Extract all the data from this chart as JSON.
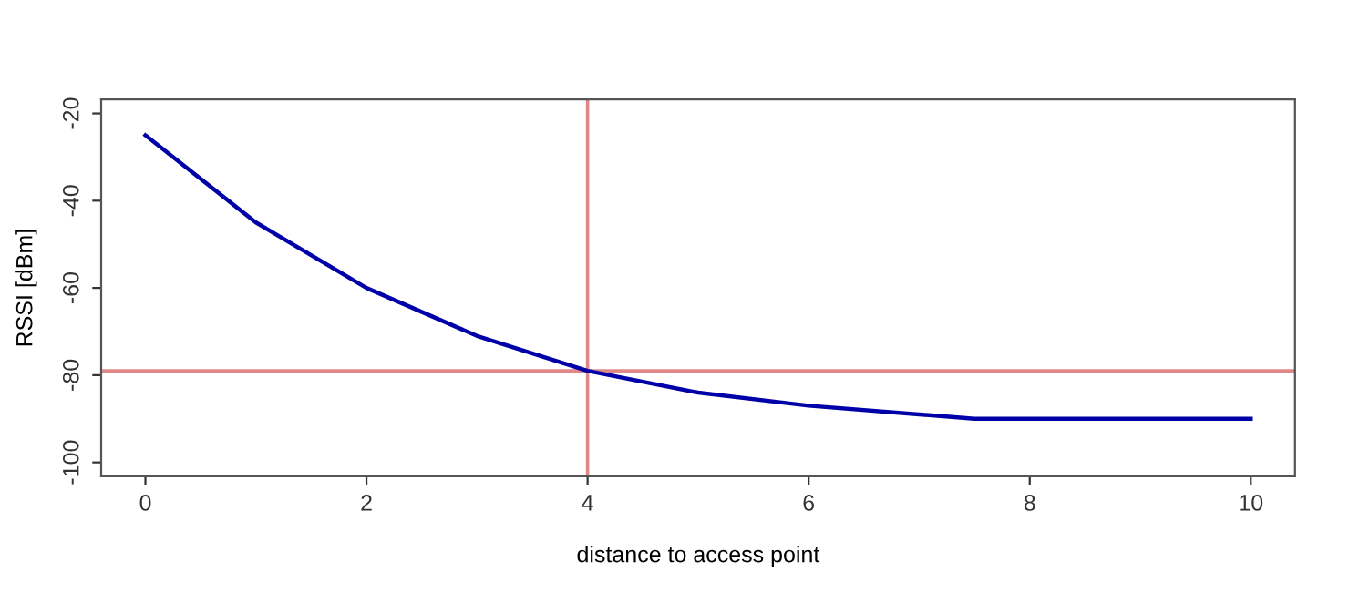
{
  "chart_data": {
    "type": "line",
    "xlabel": "distance to access point",
    "ylabel": "RSSI [dBm]",
    "x": [
      0,
      1,
      2,
      3,
      4,
      5,
      6,
      7,
      7.5,
      10
    ],
    "series": [
      {
        "color": "#0000a8",
        "values": [
          -25,
          -45,
          -60,
          -71,
          -79,
          -84,
          -87,
          -89,
          -90,
          -90
        ]
      }
    ],
    "xlim": [
      -0.4,
      10.4
    ],
    "ylim": [
      -103.2,
      -16.8
    ],
    "xticks": [
      0,
      2,
      4,
      6,
      8,
      10
    ],
    "yticks": [
      -100,
      -80,
      -60,
      -40,
      -20
    ],
    "ref_lines": [
      {
        "axis": "x",
        "value": 4,
        "color": "#e08888"
      },
      {
        "axis": "y",
        "value": -79,
        "color": "#e08888"
      }
    ],
    "grid": false,
    "legend": false,
    "marker": "none",
    "line_style": "solid"
  }
}
